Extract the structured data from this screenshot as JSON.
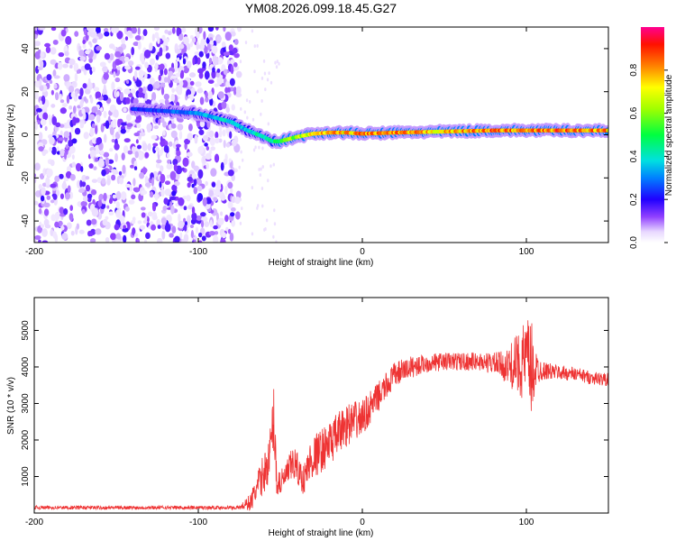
{
  "title": "YM08.2026.099.18.45.G27",
  "chart_data": [
    {
      "type": "heatmap",
      "title": "YM08.2026.099.18.45.G27",
      "xlabel": "Height of straight line (km)",
      "ylabel": "Frequency (Hz)",
      "xlim": [
        -200,
        150
      ],
      "ylim": [
        -50,
        50
      ],
      "xticks": [
        "-200",
        "-100",
        "0",
        "100"
      ],
      "yticks": [
        "40",
        "20",
        "0",
        "-20",
        "-40"
      ],
      "colorbar": {
        "label": "Normalized spectral amplitude",
        "range": [
          0,
          1
        ],
        "ticks": [
          "0.0",
          "0.2",
          "0.4",
          "0.6",
          "0.8"
        ],
        "colors": [
          "#ffffff",
          "#c8a8ff",
          "#8000ff",
          "#0000ff",
          "#00c0ff",
          "#00ff80",
          "#80ff00",
          "#ffff00",
          "#ff8000",
          "#ff0000",
          "#ff0080"
        ]
      },
      "ridge": {
        "x": [
          -140,
          -120,
          -100,
          -90,
          -80,
          -70,
          -60,
          -55,
          -50,
          -45,
          -40,
          -30,
          -20,
          -10,
          0,
          20,
          50,
          80,
          100,
          120,
          150
        ],
        "freq": [
          12,
          11,
          10,
          8,
          6,
          2,
          -1,
          -3,
          -3,
          -2,
          -1,
          0.5,
          1,
          1,
          0.5,
          1,
          1.5,
          2,
          2,
          2,
          2
        ],
        "amplitude": [
          0.25,
          0.3,
          0.35,
          0.4,
          0.45,
          0.4,
          0.5,
          0.45,
          0.6,
          0.65,
          0.7,
          0.8,
          0.9,
          0.85,
          0.95,
          0.9,
          0.85,
          0.95,
          0.9,
          0.95,
          0.9
        ]
      }
    },
    {
      "type": "line",
      "xlabel": "Height of straight line (km)",
      "ylabel": "SNR (10 * v/v)",
      "xlim": [
        -200,
        150
      ],
      "ylim": [
        0,
        5900
      ],
      "xticks": [
        "-200",
        "-100",
        "0",
        "100"
      ],
      "yticks": [
        "1000",
        "2000",
        "3000",
        "4000",
        "5000"
      ],
      "series": [
        {
          "name": "SNR",
          "color": "#ee3333",
          "x": [
            -200,
            -150,
            -100,
            -75,
            -68,
            -62,
            -57,
            -54,
            -52,
            -48,
            -42,
            -36,
            -32,
            -28,
            -20,
            -10,
            0,
            10,
            20,
            30,
            40,
            50,
            60,
            70,
            80,
            88,
            92,
            96,
            100,
            103,
            106,
            110,
            120,
            130,
            140,
            150
          ],
          "values": [
            150,
            150,
            150,
            150,
            300,
            900,
            1400,
            2600,
            800,
            900,
            1400,
            900,
            1400,
            1600,
            1900,
            2400,
            2600,
            3200,
            3800,
            4000,
            4100,
            4150,
            4150,
            4150,
            4100,
            4000,
            4050,
            4100,
            4200,
            3900,
            3950,
            3900,
            3850,
            3800,
            3700,
            3650
          ],
          "noise": [
            50,
            50,
            50,
            50,
            250,
            500,
            600,
            900,
            500,
            300,
            500,
            400,
            600,
            600,
            600,
            600,
            500,
            400,
            350,
            300,
            250,
            250,
            250,
            250,
            300,
            450,
            700,
            900,
            1200,
            1400,
            500,
            250,
            200,
            200,
            180,
            180
          ]
        }
      ]
    }
  ]
}
